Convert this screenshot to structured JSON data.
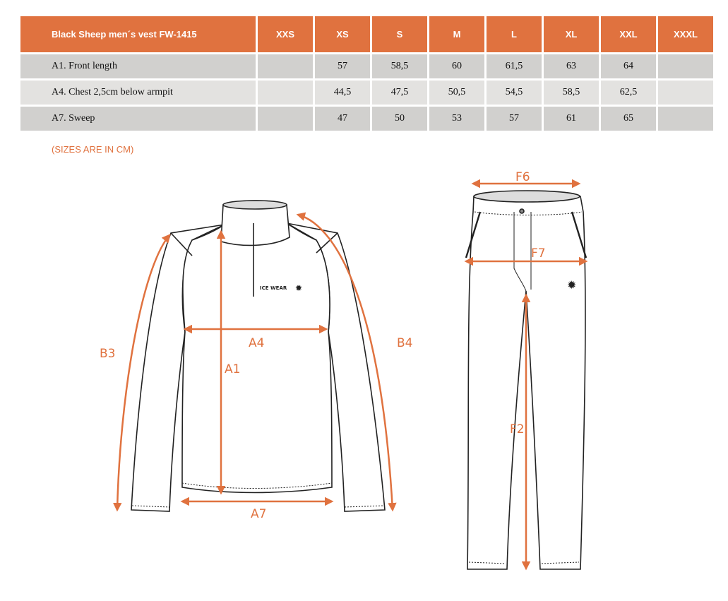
{
  "table": {
    "title": "Black Sheep men´s vest FW-1415",
    "sizes": [
      "XXS",
      "XS",
      "S",
      "M",
      "L",
      "XL",
      "XXL",
      "XXXL"
    ],
    "rows": [
      {
        "label": "A1. Front length",
        "values": [
          "",
          "57",
          "58,5",
          "60",
          "61,5",
          "63",
          "64",
          ""
        ]
      },
      {
        "label": "A4. Chest 2,5cm below armpit",
        "values": [
          "",
          "44,5",
          "47,5",
          "50,5",
          "54,5",
          "58,5",
          "62,5",
          ""
        ]
      },
      {
        "label": "A7. Sweep",
        "values": [
          "",
          "47",
          "50",
          "53",
          "57",
          "61",
          "65",
          ""
        ]
      }
    ]
  },
  "note": "(SIZES ARE IN CM)",
  "diagram": {
    "accent_color": "#E0723F",
    "jacket_labels": {
      "a1": "A1",
      "a4": "A4",
      "a7": "A7",
      "b3": "B3",
      "b4": "B4"
    },
    "logo_text": "ICE WEAR",
    "pants_labels": {
      "f2": "F2",
      "f6": "F6",
      "f7": "F7"
    }
  }
}
